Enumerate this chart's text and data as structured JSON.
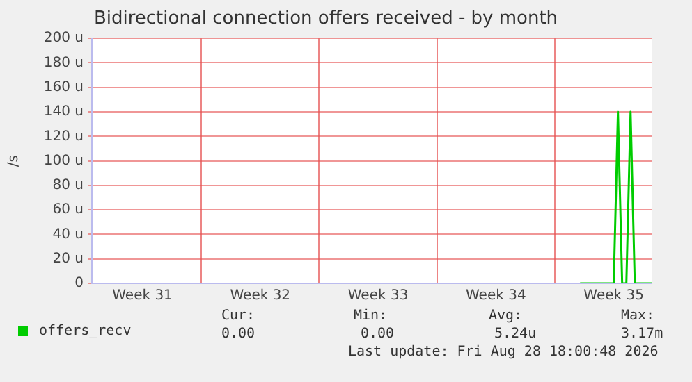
{
  "chart_data": {
    "type": "line",
    "title": "Bidirectional connection offers received - by month",
    "ylabel": "/s",
    "categories": [
      null,
      null,
      null,
      null,
      null,
      null,
      null,
      null,
      null,
      null,
      null,
      null,
      "Week 31",
      null,
      null,
      null,
      null,
      null,
      null,
      null,
      null,
      null,
      null,
      null,
      null,
      null,
      null,
      null,
      null,
      null,
      null,
      null,
      null,
      null,
      null,
      null,
      null,
      null,
      null,
      null,
      "Week 32",
      null,
      null,
      null,
      null,
      null,
      null,
      null,
      null,
      null,
      null,
      null,
      null,
      null,
      null,
      null,
      null,
      null,
      null,
      null,
      null,
      null,
      null,
      null,
      null,
      null,
      null,
      null,
      "Week 33",
      null,
      null,
      null,
      null,
      null,
      null,
      null,
      null,
      null,
      null,
      null,
      null,
      null,
      null,
      null,
      null,
      null,
      null,
      null,
      null,
      null,
      null,
      null,
      null,
      null,
      null,
      null,
      "Week 34",
      null,
      null,
      null,
      null,
      null,
      null,
      null,
      null,
      null,
      null,
      null,
      null,
      null,
      null,
      null,
      null,
      null,
      null,
      null,
      null,
      null,
      null,
      null,
      null,
      null,
      null,
      null,
      "Week 35",
      null,
      null,
      null,
      null,
      null,
      null,
      null,
      null,
      null
    ],
    "series": [
      {
        "name": "offers_recv",
        "color": "#00cc00",
        "values": [
          null,
          null,
          null,
          null,
          null,
          null,
          null,
          null,
          null,
          null,
          null,
          null,
          null,
          null,
          null,
          null,
          null,
          null,
          null,
          null,
          null,
          null,
          null,
          null,
          null,
          null,
          null,
          null,
          null,
          null,
          null,
          null,
          null,
          null,
          null,
          null,
          null,
          null,
          null,
          null,
          null,
          null,
          null,
          null,
          null,
          null,
          null,
          null,
          null,
          null,
          null,
          null,
          null,
          null,
          null,
          null,
          null,
          null,
          null,
          null,
          null,
          null,
          null,
          null,
          null,
          null,
          null,
          null,
          null,
          null,
          null,
          null,
          null,
          null,
          null,
          null,
          null,
          null,
          null,
          null,
          null,
          null,
          null,
          null,
          null,
          null,
          null,
          null,
          null,
          null,
          null,
          null,
          null,
          null,
          null,
          null,
          null,
          null,
          null,
          null,
          null,
          null,
          null,
          null,
          null,
          null,
          null,
          null,
          null,
          null,
          null,
          null,
          null,
          null,
          null,
          null,
          0,
          0,
          0,
          0,
          0,
          0,
          0,
          0,
          0,
          140,
          0,
          0,
          140,
          0,
          0,
          0,
          0,
          0
        ]
      }
    ],
    "ylim": [
      0,
      200
    ],
    "yticks": [
      {
        "value": 0,
        "label": "0"
      },
      {
        "value": 20,
        "label": "20 u"
      },
      {
        "value": 40,
        "label": "40 u"
      },
      {
        "value": 60,
        "label": "60 u"
      },
      {
        "value": 80,
        "label": "80 u"
      },
      {
        "value": 100,
        "label": "100 u"
      },
      {
        "value": 120,
        "label": "120 u"
      },
      {
        "value": 140,
        "label": "140 u"
      },
      {
        "value": 160,
        "label": "160 u"
      },
      {
        "value": 180,
        "label": "180 u"
      },
      {
        "value": 200,
        "label": "200 u"
      }
    ],
    "grid": true,
    "legend": "bottom",
    "marker": "none",
    "line_style": "solid",
    "annotations": [
      "Cur:",
      "0.00",
      "Min:",
      "0.00",
      "Avg:",
      "5.24u",
      "Max:",
      "3.17m",
      "Last update: Fri Aug 28 18:00:48 2026"
    ]
  }
}
